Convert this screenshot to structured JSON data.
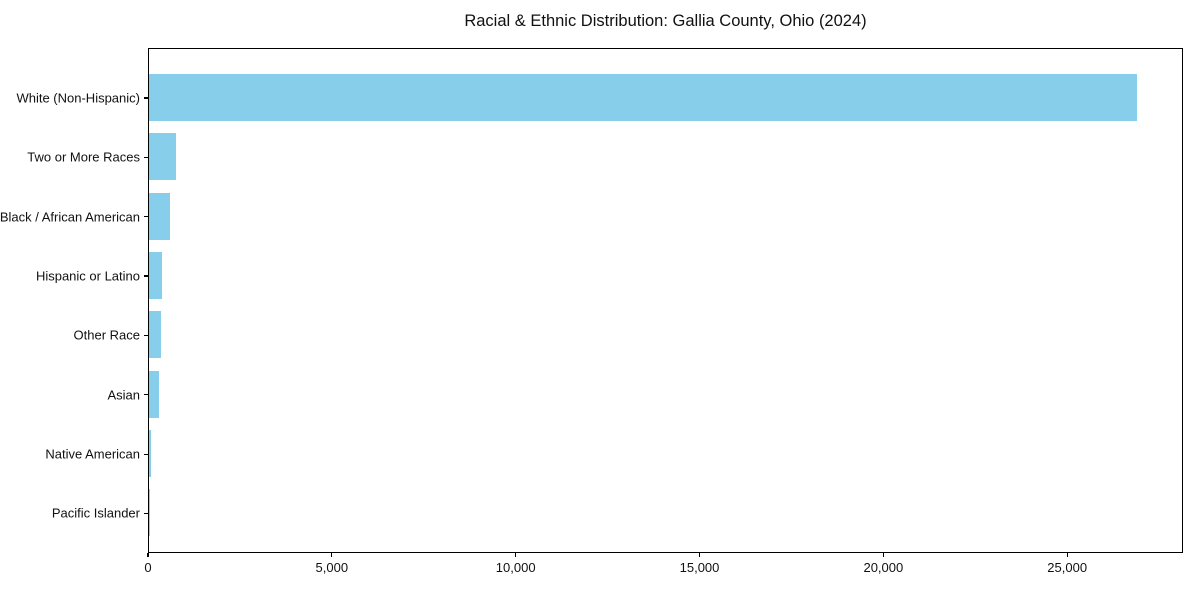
{
  "chart_data": {
    "type": "bar",
    "orientation": "horizontal",
    "title": "Racial & Ethnic Distribution: Gallia County, Ohio (2024)",
    "categories": [
      "White (Non-Hispanic)",
      "Two or More Races",
      "Black / African American",
      "Hispanic or Latino",
      "Other Race",
      "Asian",
      "Native American",
      "Pacific Islander"
    ],
    "values": [
      26880,
      735,
      560,
      345,
      320,
      265,
      45,
      10
    ],
    "xlabel": "",
    "ylabel": "",
    "xlim": [
      0,
      28150
    ],
    "xticks": [
      0,
      5000,
      10000,
      15000,
      20000,
      25000
    ],
    "xtick_labels": [
      "0",
      "5,000",
      "10,000",
      "15,000",
      "20,000",
      "25,000"
    ],
    "bar_color": "#87CEEB",
    "axis_color": "#000000",
    "grid": false,
    "legend": null
  }
}
